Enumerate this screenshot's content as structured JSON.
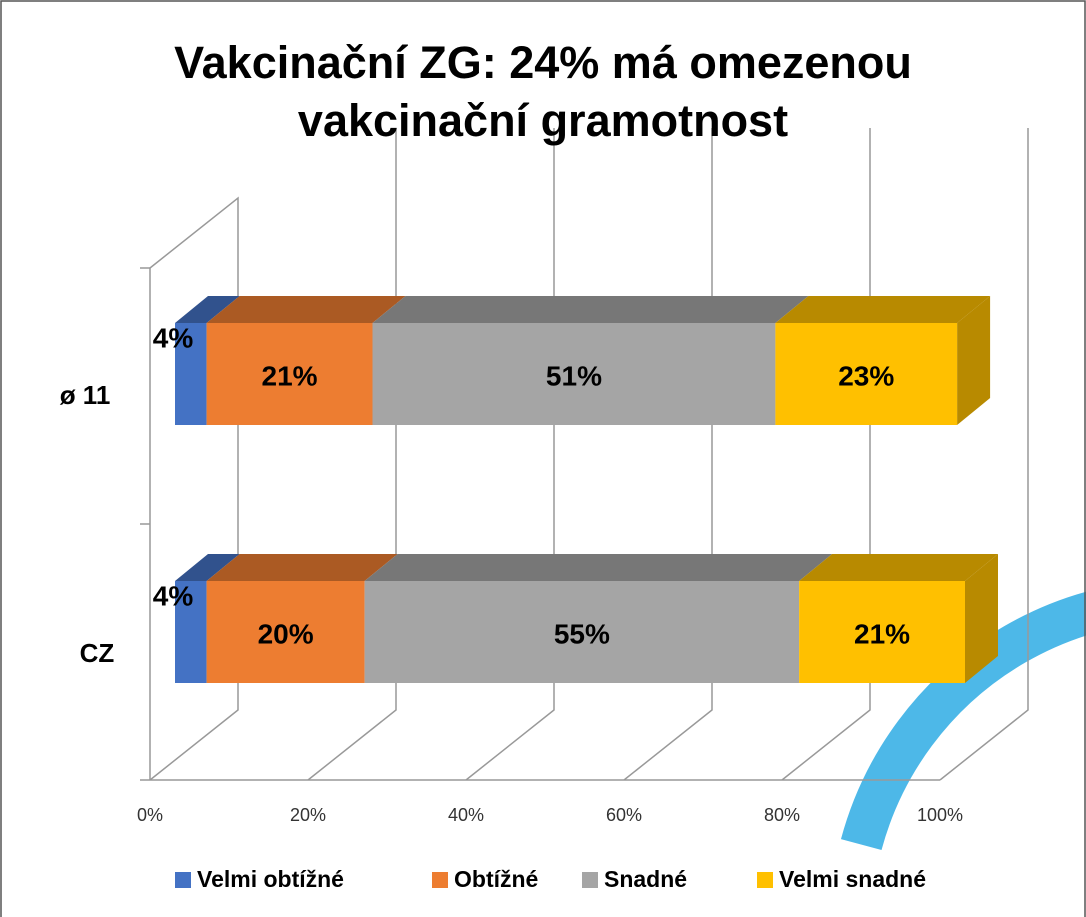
{
  "chart_data": {
    "type": "bar3d_stacked_horizontal",
    "title": "Vakcinační ZG: 24% má omezenou vakcinační gramotnost",
    "categories": [
      "ø 11",
      "CZ"
    ],
    "series": [
      {
        "name": "Velmi obtížné",
        "color": "#4472c4",
        "values": [
          4,
          4
        ],
        "value_labels": [
          "4%",
          "4%"
        ]
      },
      {
        "name": "Obtížné",
        "color": "#ed7d31",
        "values": [
          21,
          20
        ],
        "value_labels": [
          "21%",
          "20%"
        ]
      },
      {
        "name": "Snadné",
        "color": "#a5a5a5",
        "values": [
          51,
          55
        ],
        "value_labels": [
          "51%",
          "55%"
        ]
      },
      {
        "name": "Velmi snadné",
        "color": "#ffc000",
        "values": [
          23,
          21
        ],
        "value_labels": [
          "23%",
          "21%"
        ]
      }
    ],
    "xlim": [
      0,
      100
    ],
    "xticks": [
      {
        "value": 0,
        "label": "0%"
      },
      {
        "value": 20,
        "label": "20%"
      },
      {
        "value": 40,
        "label": "40%"
      },
      {
        "value": 60,
        "label": "60%"
      },
      {
        "value": 80,
        "label": "80%"
      },
      {
        "value": 100,
        "label": "100%"
      }
    ],
    "grid": true,
    "legend": "bottom"
  }
}
